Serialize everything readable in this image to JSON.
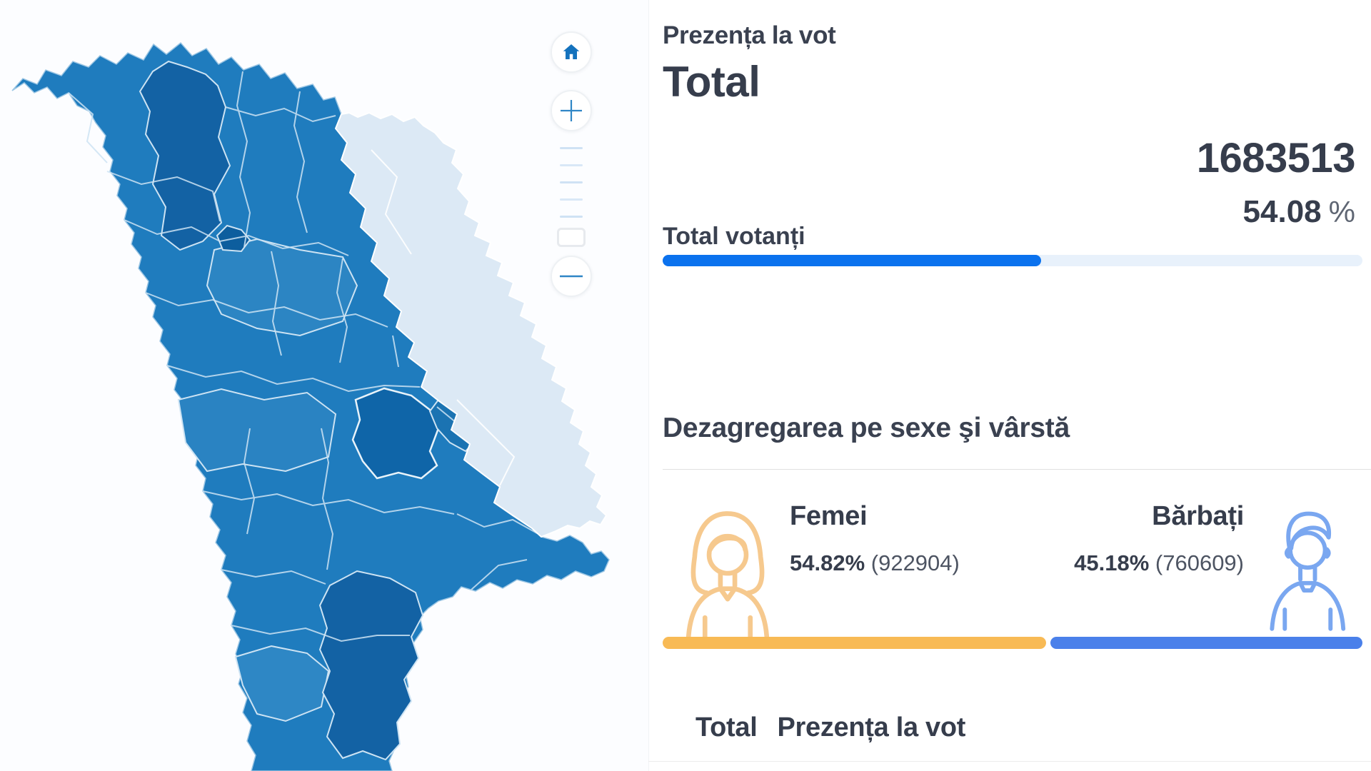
{
  "header": {
    "eyebrow": "Prezența la vot",
    "title": "Total"
  },
  "turnout": {
    "label": "Total votanți",
    "count": "1683513",
    "percent": 54.08,
    "percent_display": "54.08",
    "percent_sign": "%"
  },
  "gender": {
    "heading": "Dezagregarea pe sexe şi vârstă",
    "female": {
      "label": "Femei",
      "percent": 54.82,
      "percent_display": "54.82%",
      "count_display": "(922904)",
      "icon": "woman-icon",
      "bar_color": "#f8ba55",
      "icon_color": "#f6c98e"
    },
    "male": {
      "label": "Bărbați",
      "percent": 45.18,
      "percent_display": "45.18%",
      "count_display": "(760609)",
      "icon": "man-icon",
      "bar_color": "#4a80ea",
      "icon_color": "#7aa7f0"
    }
  },
  "table_header": {
    "col_total": "Total",
    "col_prezenta": "Prezența la vot"
  },
  "map": {
    "region": "Moldova districts choropleth",
    "controls": [
      {
        "name": "home",
        "icon": "home-icon"
      },
      {
        "name": "zoom-in",
        "icon": "plus-icon"
      },
      {
        "name": "zoom-extent",
        "icon": "square-icon"
      },
      {
        "name": "zoom-out",
        "icon": "minus-icon"
      }
    ],
    "zoom_ticks": 5,
    "palette": {
      "base": "#1f7cbe",
      "medium": "#2c85c3",
      "dark": "#1362a4",
      "darker": "#0f65a8",
      "light_region": "#dce9f5",
      "border": "#cde3f3"
    }
  },
  "colors": {
    "accent_blue": "#0b72ee",
    "progress_track": "#e8f1fb",
    "text_dark": "#3a4150",
    "text_gray": "#4d5462",
    "female_orange": "#f8ba55",
    "male_blue": "#4a80ea"
  }
}
